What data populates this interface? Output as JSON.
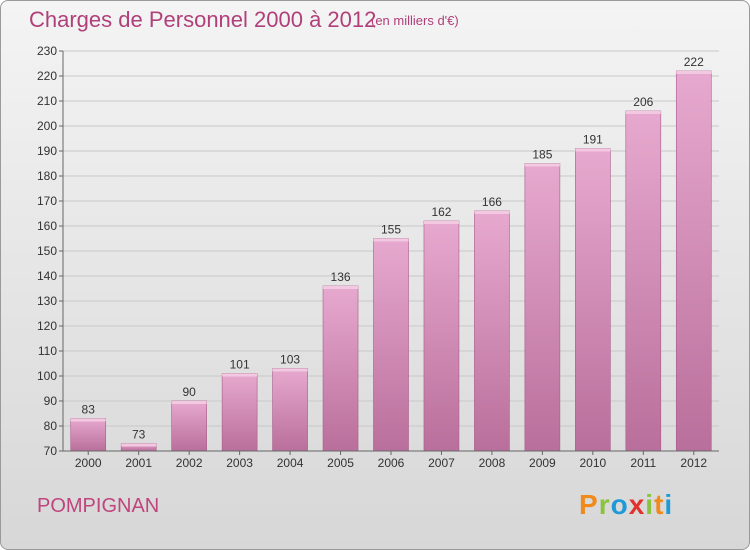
{
  "chart_data": {
    "type": "bar",
    "title": "Charges de Personnel 2000 à 2012",
    "subtitle": "(en milliers d'€)",
    "categories": [
      "2000",
      "2001",
      "2002",
      "2003",
      "2004",
      "2005",
      "2006",
      "2007",
      "2008",
      "2009",
      "2010",
      "2011",
      "2012"
    ],
    "values": [
      83,
      73,
      90,
      101,
      103,
      136,
      155,
      162,
      166,
      185,
      191,
      206,
      222
    ],
    "ylim": [
      70,
      230
    ],
    "yticks": [
      70,
      80,
      90,
      100,
      110,
      120,
      130,
      140,
      150,
      160,
      170,
      180,
      190,
      200,
      210,
      220,
      230
    ],
    "grid": true,
    "bar_color": "#d68fb8"
  },
  "footer": {
    "location": "POMPIGNAN",
    "logo_letters": [
      "P",
      "r",
      "o",
      "x",
      "i",
      "t",
      "i"
    ],
    "logo_colors": [
      "#f08a1c",
      "#8ac43f",
      "#1f9ad6",
      "#e2322d",
      "#8ac43f",
      "#f08a1c",
      "#1f9ad6"
    ]
  }
}
